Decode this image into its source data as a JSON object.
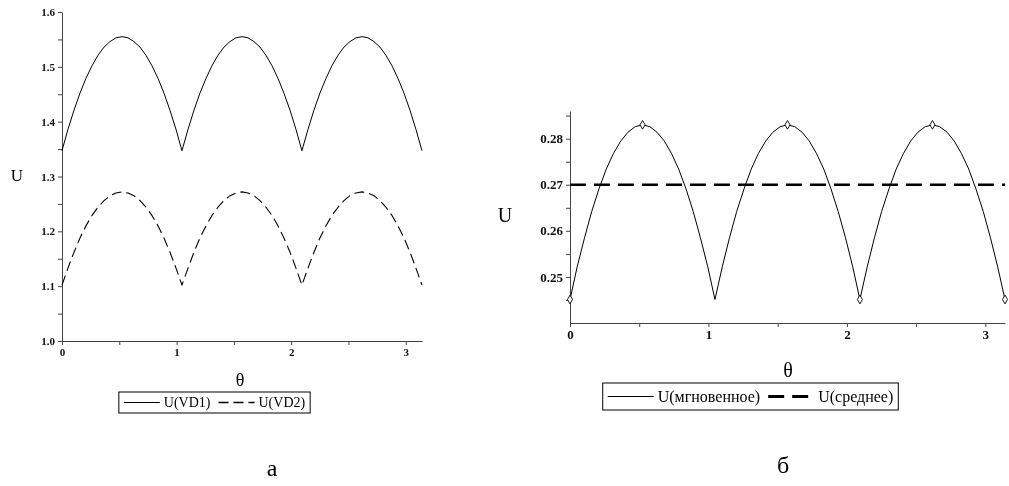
{
  "chart_data": [
    {
      "type": "line",
      "xlabel": "θ",
      "ylabel": "U",
      "annotations": [
        "а"
      ],
      "legend": "bottom",
      "xlim": [
        0,
        3.142
      ],
      "ylim": [
        1.0,
        1.6
      ],
      "xticks": [
        0,
        {
          "value": 0.5,
          "label": null
        },
        1,
        {
          "value": 1.5,
          "label": null
        },
        2,
        {
          "value": 2.5,
          "label": null
        },
        3
      ],
      "yticks": [
        {
          "value": 1.0,
          "label": "1.0"
        },
        {
          "value": 1.05,
          "label": null
        },
        1.1,
        {
          "value": 1.15,
          "label": null
        },
        1.2,
        {
          "value": 1.25,
          "label": null
        },
        1.3,
        {
          "value": 1.35,
          "label": null
        },
        1.4,
        {
          "value": 1.45,
          "label": null
        },
        1.5,
        {
          "value": 1.55,
          "label": null
        },
        1.6
      ],
      "x": [
        0,
        0.052,
        0.105,
        0.157,
        0.209,
        0.262,
        0.314,
        0.367,
        0.419,
        0.471,
        0.524,
        0.576,
        0.628,
        0.681,
        0.733,
        0.785,
        0.838,
        0.89,
        0.942,
        0.995,
        1.047,
        1.1,
        1.152,
        1.204,
        1.257,
        1.309,
        1.361,
        1.414,
        1.466,
        1.518,
        1.571,
        1.623,
        1.676,
        1.728,
        1.78,
        1.833,
        1.885,
        1.937,
        1.99,
        2.042,
        2.094,
        2.147,
        2.199,
        2.251,
        2.304,
        2.356,
        2.409,
        2.461,
        2.513,
        2.566,
        2.618,
        2.67,
        2.723,
        2.775,
        2.827,
        2.88,
        2.932,
        2.985,
        3.037,
        3.089,
        3.142
      ],
      "series": [
        {
          "name": "U(VD1)",
          "color": "#000000",
          "line_style": "solid",
          "values": [
            1.347,
            1.386,
            1.421,
            1.452,
            1.479,
            1.502,
            1.521,
            1.536,
            1.546,
            1.553,
            1.555,
            1.553,
            1.546,
            1.536,
            1.521,
            1.502,
            1.479,
            1.452,
            1.421,
            1.386,
            1.347,
            1.386,
            1.421,
            1.452,
            1.479,
            1.502,
            1.521,
            1.536,
            1.546,
            1.553,
            1.555,
            1.553,
            1.546,
            1.536,
            1.521,
            1.502,
            1.479,
            1.452,
            1.421,
            1.386,
            1.347,
            1.386,
            1.421,
            1.452,
            1.479,
            1.502,
            1.521,
            1.536,
            1.546,
            1.553,
            1.555,
            1.553,
            1.546,
            1.536,
            1.521,
            1.502,
            1.479,
            1.452,
            1.421,
            1.386,
            1.347
          ]
        },
        {
          "name": "U(VD2)",
          "color": "#000000",
          "line_style": "dashed",
          "values": [
            1.102,
            1.133,
            1.162,
            1.188,
            1.21,
            1.229,
            1.244,
            1.256,
            1.265,
            1.27,
            1.272,
            1.27,
            1.265,
            1.256,
            1.244,
            1.229,
            1.21,
            1.188,
            1.162,
            1.133,
            1.102,
            1.133,
            1.162,
            1.188,
            1.21,
            1.229,
            1.244,
            1.256,
            1.265,
            1.27,
            1.272,
            1.27,
            1.265,
            1.256,
            1.244,
            1.229,
            1.21,
            1.188,
            1.162,
            1.133,
            1.102,
            1.133,
            1.162,
            1.188,
            1.21,
            1.229,
            1.244,
            1.256,
            1.265,
            1.27,
            1.272,
            1.27,
            1.265,
            1.256,
            1.244,
            1.229,
            1.21,
            1.188,
            1.162,
            1.133,
            1.102
          ]
        }
      ]
    },
    {
      "type": "line",
      "xlabel": "θ",
      "ylabel": "U",
      "annotations": [
        "б"
      ],
      "legend": "bottom",
      "xlim": [
        0,
        3.142
      ],
      "ylim": [
        0.24,
        0.286
      ],
      "xticks": [
        0,
        {
          "value": 0.5,
          "label": null
        },
        1,
        {
          "value": 1.5,
          "label": null
        },
        2,
        {
          "value": 2.5,
          "label": null
        },
        3
      ],
      "yticks": [
        {
          "value": 0.245,
          "label": null
        },
        0.25,
        {
          "value": 0.255,
          "label": null
        },
        0.26,
        {
          "value": 0.265,
          "label": null
        },
        0.27,
        {
          "value": 0.275,
          "label": null
        },
        0.28,
        {
          "value": 0.285,
          "label": null
        }
      ],
      "x": [
        0,
        0.052,
        0.105,
        0.157,
        0.209,
        0.262,
        0.314,
        0.367,
        0.419,
        0.471,
        0.524,
        0.576,
        0.628,
        0.681,
        0.733,
        0.785,
        0.838,
        0.89,
        0.942,
        0.995,
        1.047,
        1.1,
        1.152,
        1.204,
        1.257,
        1.309,
        1.361,
        1.414,
        1.466,
        1.518,
        1.571,
        1.623,
        1.676,
        1.728,
        1.78,
        1.833,
        1.885,
        1.937,
        1.99,
        2.042,
        2.094,
        2.147,
        2.199,
        2.251,
        2.304,
        2.356,
        2.409,
        2.461,
        2.513,
        2.566,
        2.618,
        2.67,
        2.723,
        2.775,
        2.827,
        2.88,
        2.932,
        2.985,
        3.037,
        3.089,
        3.142
      ],
      "series": [
        {
          "name": "U(мгновенное)",
          "color": "#000000",
          "line_style": "solid",
          "values": [
            0.2451,
            0.2522,
            0.2585,
            0.2642,
            0.2691,
            0.2734,
            0.2768,
            0.2795,
            0.2814,
            0.2826,
            0.283,
            0.2826,
            0.2814,
            0.2795,
            0.2768,
            0.2734,
            0.2691,
            0.2642,
            0.2585,
            0.2522,
            0.2451,
            0.2522,
            0.2585,
            0.2642,
            0.2691,
            0.2734,
            0.2768,
            0.2795,
            0.2814,
            0.2826,
            0.283,
            0.2826,
            0.2814,
            0.2795,
            0.2768,
            0.2734,
            0.2691,
            0.2642,
            0.2585,
            0.2522,
            0.2451,
            0.2522,
            0.2585,
            0.2642,
            0.2691,
            0.2734,
            0.2768,
            0.2795,
            0.2814,
            0.2826,
            0.283,
            0.2826,
            0.2814,
            0.2795,
            0.2768,
            0.2734,
            0.2691,
            0.2642,
            0.2585,
            0.2522,
            0.2451
          ]
        },
        {
          "name": "U(среднее)",
          "color": "#000000",
          "line_style": "dashed",
          "x": [
            0,
            3.142
          ],
          "values": [
            0.27,
            0.27
          ]
        },
        {
          "type": "scatter",
          "marker": "diamond",
          "color": "#000000",
          "x": [
            0,
            0.524,
            1.571,
            2.094,
            2.618,
            3.142
          ],
          "values": [
            0.2451,
            0.283,
            0.283,
            0.2451,
            0.283,
            0.2451
          ]
        }
      ]
    }
  ]
}
